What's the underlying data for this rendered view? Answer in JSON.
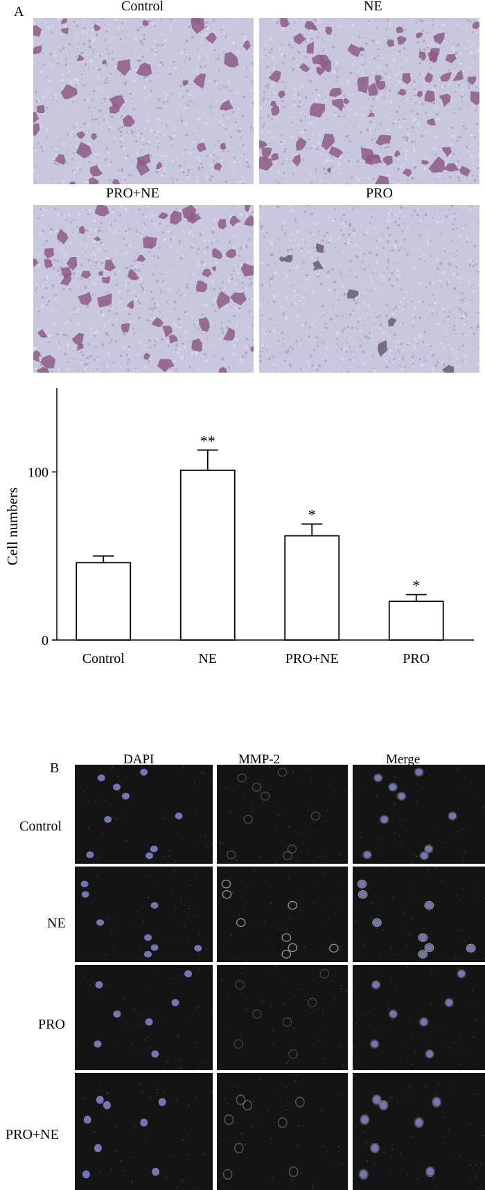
{
  "panel_a": {
    "letter": "A",
    "images": [
      {
        "label": "Control",
        "density": 0.55,
        "stain": "#8e5c86"
      },
      {
        "label": "NE",
        "density": 1.0,
        "stain": "#8e5c86"
      },
      {
        "label": "PRO+NE",
        "density": 0.75,
        "stain": "#8e5c86"
      },
      {
        "label": "PRO",
        "density": 0.12,
        "stain": "#6b5a72"
      }
    ]
  },
  "chart_data": {
    "type": "bar",
    "categories": [
      "Control",
      "NE",
      "PRO+NE",
      "PRO"
    ],
    "values": [
      46,
      101,
      62,
      23
    ],
    "errors": [
      4,
      12,
      7,
      4
    ],
    "significance": [
      "",
      "**",
      "*",
      "*"
    ],
    "ylabel": "Cell numbers",
    "yticks": [
      0,
      100
    ],
    "ylim": [
      0,
      150
    ],
    "bar_fill": "#ffffff",
    "bar_stroke": "#000000"
  },
  "panel_b": {
    "letter": "B",
    "columns": [
      "DAPI",
      "MMP-2",
      "Merge"
    ],
    "rows": [
      {
        "label": "Control",
        "nuclei": 9,
        "mmp2": 0.35
      },
      {
        "label": "NE",
        "nuclei": 8,
        "mmp2": 0.85
      },
      {
        "label": "PRO",
        "nuclei": 7,
        "mmp2": 0.3
      },
      {
        "label": "PRO+NE",
        "nuclei": 8,
        "mmp2": 0.45
      }
    ],
    "colors": {
      "dapi": "#8080c8",
      "mmp2": "#9aa39a",
      "background": "#141414"
    }
  }
}
